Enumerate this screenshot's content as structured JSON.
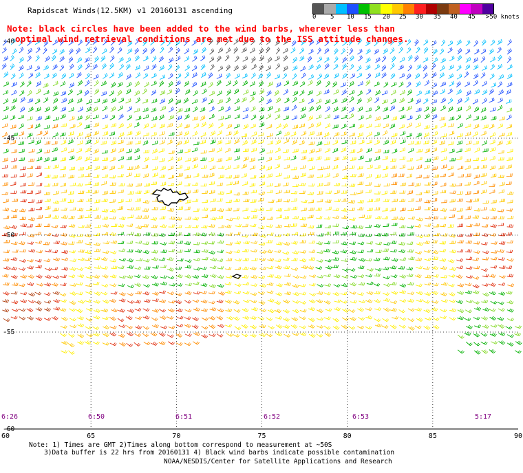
{
  "title": "Rapidscat Winds(12.5KM) v1 20160131 ascending",
  "note": {
    "line1": "Note: black circles have been added to the wind barbs, wherever less than",
    "line2": "optimal wind retrieval conditions are met due to the ISS attitude changes."
  },
  "legend": {
    "colors": [
      "#555555",
      "#aaaaaa",
      "#00bfff",
      "#1e50ff",
      "#00c000",
      "#90e020",
      "#ffff00",
      "#ffc800",
      "#ff8000",
      "#ff2020",
      "#b00000",
      "#7a3a10",
      "#c06020",
      "#ff00ff",
      "#c000c0",
      "#5000a0"
    ],
    "labels": [
      "0",
      "5",
      "10",
      "15",
      "20",
      "25",
      "30",
      "35",
      "40",
      "45",
      ">50 knots"
    ]
  },
  "axes": {
    "lon_labels": [
      "60",
      "65",
      "70",
      "75",
      "80",
      "85",
      "90"
    ],
    "lat_labels": [
      "-40",
      "-45",
      "-50",
      "-55",
      "-60"
    ]
  },
  "times": [
    "6:26",
    "6:50",
    "6:51",
    "6:52",
    "6:53",
    "5:17"
  ],
  "footer": {
    "line1": "Note: 1) Times are GMT 2)Times along bottom correspond to measurement at ~50S",
    "line2": "3)Data buffer is 22 hrs from 20160131 4) Black wind barbs indicate possible contamination",
    "line3": "NOAA/NESDIS/Center for Satellite Applications and Research"
  }
}
